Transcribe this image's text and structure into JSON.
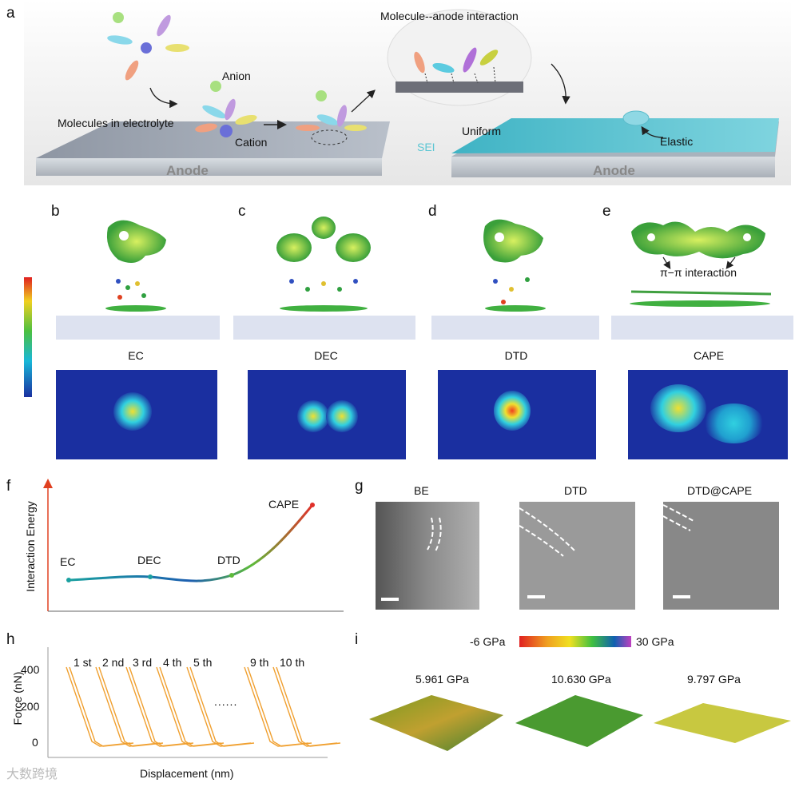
{
  "panel_letters": {
    "a": "a",
    "b": "b",
    "c": "c",
    "d": "d",
    "e": "e",
    "f": "f",
    "g": "g",
    "h": "h",
    "i": "i"
  },
  "panel_a": {
    "title": "Molecule--anode interaction",
    "anion": "Anion",
    "molecules": "Molecules in electrolyte",
    "cation": "Cation",
    "anode_left": "Anode",
    "anode_right": "Anode",
    "sei": "SEI",
    "uniform": "Uniform",
    "elastic": "Elastic"
  },
  "panel_b_e": {
    "molecules": [
      "EC",
      "DEC",
      "DTD",
      "CAPE"
    ],
    "pi_label": "π−π interaction"
  },
  "panel_f": {
    "ylabel": "Interaction Energy",
    "points": [
      "EC",
      "DEC",
      "DTD",
      "CAPE"
    ]
  },
  "panel_g": {
    "titles": [
      "BE",
      "DTD",
      "DTD@CAPE"
    ]
  },
  "panel_h": {
    "ylabel": "Force (nN)",
    "xlabel": "Displacement (nm)",
    "yticks": [
      "400",
      "200",
      "0"
    ],
    "cycles": [
      "1 st",
      "2 nd",
      "3 rd",
      "4 th",
      "5 th",
      "9 th",
      "10 th"
    ],
    "ellipsis": "......"
  },
  "panel_i": {
    "scale_min": "-6 GPa",
    "scale_max": "30 GPa",
    "moduli": [
      "5.961 GPa",
      "10.630 GPa",
      "9.797 GPa"
    ]
  },
  "watermark": "大数跨境",
  "colors": {
    "heat_bg": "#1a2fa0",
    "curve": "#f0a030",
    "sei": "#5cc6d3"
  }
}
